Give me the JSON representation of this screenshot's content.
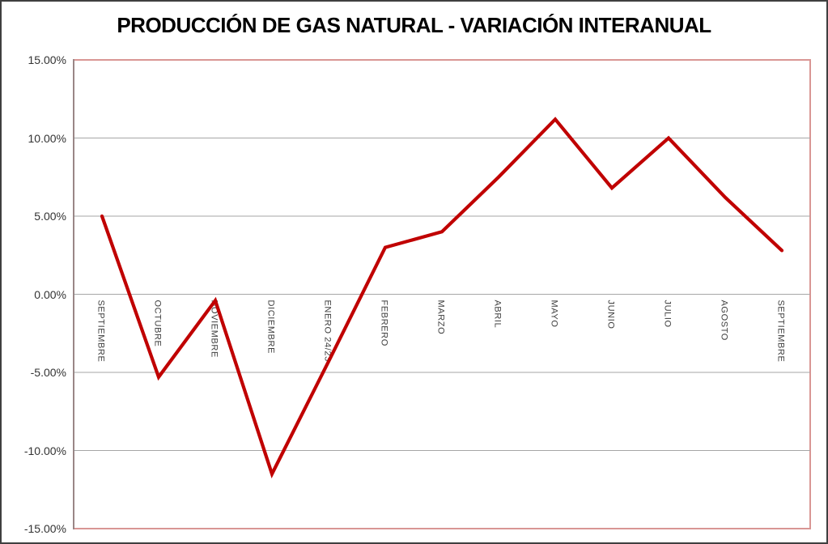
{
  "title": "PRODUCCIÓN DE GAS NATURAL - VARIACIÓN INTERANUAL",
  "chart_data": {
    "type": "line",
    "title": "PRODUCCIÓN DE GAS NATURAL - VARIACIÓN INTERANUAL",
    "categories": [
      "SEPTIEMBRE",
      "OCTUBRE",
      "NOVIEMBRE",
      "DICIEMBRE",
      "ENERO 24/23",
      "FEBRERO",
      "MARZO",
      "ABRIL",
      "MAYO",
      "JUNIO",
      "JULIO",
      "AGOSTO",
      "SEPTIEMBRE"
    ],
    "series": [
      {
        "name": "Variación interanual",
        "color": "#C00000",
        "values": [
          5.0,
          -5.3,
          -0.4,
          -11.5,
          -4.3,
          3.0,
          4.0,
          7.5,
          11.2,
          6.8,
          10.0,
          6.2,
          2.8
        ]
      }
    ],
    "unit": "%",
    "ylim": [
      -15,
      15
    ],
    "ytick_step": 5,
    "ytick_labels": [
      "15.00%",
      "10.00%",
      "5.00%",
      "0.00%",
      "-5.00%",
      "-10.00%",
      "-15.00%"
    ],
    "xlabel": "",
    "ylabel": "",
    "grid": true,
    "legend_position": "none",
    "colors": {
      "series_line": "#C00000",
      "gridline": "#A6A6A6",
      "axis_line": "#808080",
      "plot_border": "#D99694",
      "frame_border": "#404040",
      "tick_label": "#333333",
      "title_text": "#000000",
      "background": "#FFFFFF"
    }
  }
}
